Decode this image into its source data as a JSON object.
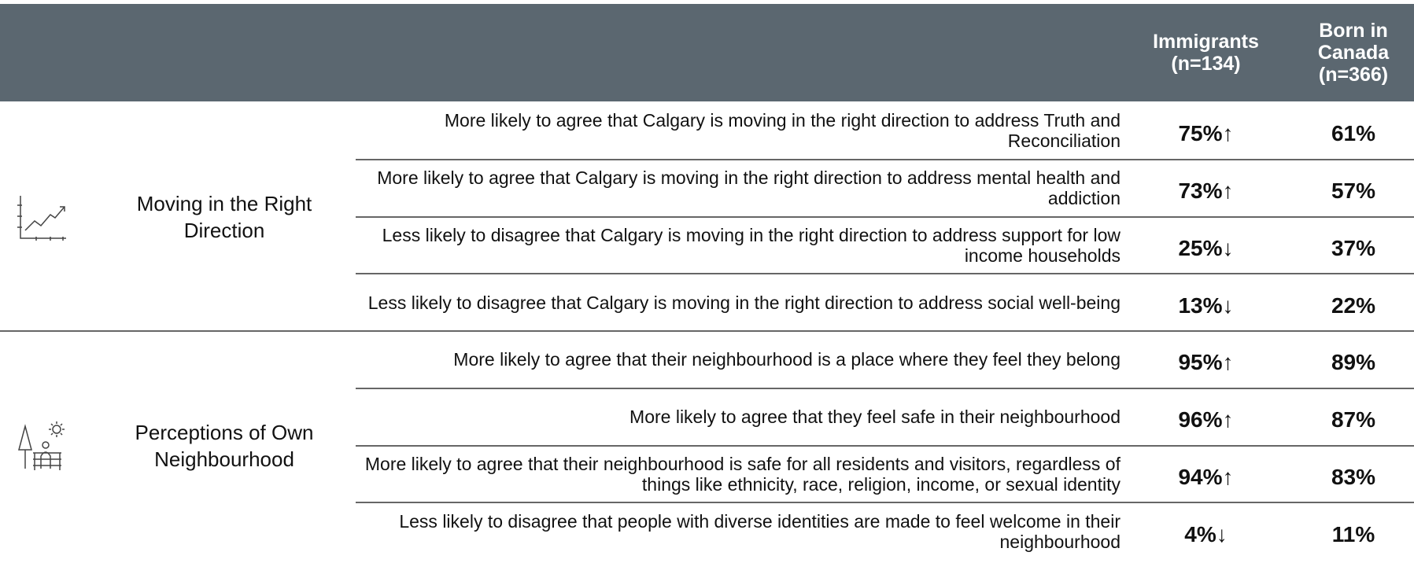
{
  "table": {
    "columns": [
      "Immigrants\n(n=134)",
      "Born in\nCanada\n(n=366)"
    ],
    "groups": [
      {
        "label": "Moving in the Right Direction",
        "rows": [
          {
            "statement": "More likely to agree that Calgary is moving in the right direction to address Truth and Reconciliation",
            "values": [
              "75%↑",
              "61%"
            ]
          },
          {
            "statement": "More likely to agree that Calgary is moving in the right direction to address mental health and addiction",
            "values": [
              "73%↑",
              "57%"
            ]
          },
          {
            "statement": "Less likely to disagree that Calgary is moving in the right direction to address support for low income households",
            "values": [
              "25%↓",
              "37%"
            ]
          },
          {
            "statement": "Less likely to disagree that Calgary is moving in the right direction to address social well-being",
            "values": [
              "13%↓",
              "22%"
            ]
          }
        ]
      },
      {
        "label": "Perceptions of Own Neighbourhood",
        "rows": [
          {
            "statement": "More likely to agree that their neighbourhood is a place where they feel they belong",
            "values": [
              "95%↑",
              "89%"
            ]
          },
          {
            "statement": "More likely to agree that they feel safe in their neighbourhood",
            "values": [
              "96%↑",
              "87%"
            ]
          },
          {
            "statement": "More likely to agree that their neighbourhood is safe for all residents and visitors, regardless of things like ethnicity, race, religion, income, or sexual identity",
            "values": [
              "94%↑",
              "83%"
            ]
          },
          {
            "statement": "Less likely to disagree that people with diverse identities are made to feel welcome in their neighbourhood",
            "values": [
              "4%↓",
              "11%"
            ]
          }
        ]
      }
    ]
  }
}
